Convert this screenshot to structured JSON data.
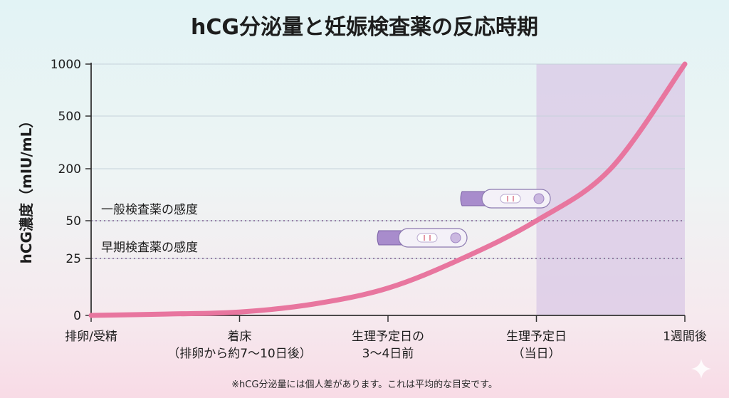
{
  "chart_data": {
    "type": "line",
    "title": "hCG分泌量と妊娠検査薬の反応時期",
    "ylabel": "hCG濃度（mIU/mL）",
    "xlabel": "",
    "y_ticks": [
      "0",
      "25",
      "50",
      "200",
      "500",
      "1000"
    ],
    "y_tick_values": [
      0,
      25,
      50,
      200,
      500,
      1000
    ],
    "x_ticks": [
      {
        "lines": [
          "排卵/受精"
        ]
      },
      {
        "lines": [
          "着床",
          "（排卵から約7〜10日後）"
        ]
      },
      {
        "lines": [
          "生理予定日の",
          "3〜4日前"
        ]
      },
      {
        "lines": [
          "生理予定日",
          "（当日）"
        ]
      },
      {
        "lines": [
          "1週間後"
        ]
      }
    ],
    "x_tick_positions": [
      0,
      1,
      2,
      3,
      4
    ],
    "series": [
      {
        "x": [
          0,
          0.5,
          1.0,
          1.5,
          2.0,
          2.5,
          3.0,
          3.5,
          4.0
        ],
        "y": [
          0,
          0.6,
          1.5,
          5,
          12,
          25,
          50,
          200,
          1000
        ],
        "color": "#e8769f"
      }
    ],
    "thresholds": [
      {
        "label": "一般検査薬の感度",
        "value": 50
      },
      {
        "label": "早期検査薬の感度",
        "value": 25
      }
    ],
    "highlight_region": {
      "from": 3,
      "to": 4,
      "color": "#d9c8e6"
    },
    "footnote": "※hCG分泌量には個人差があります。これは平均的な目安です。",
    "grid": true
  }
}
